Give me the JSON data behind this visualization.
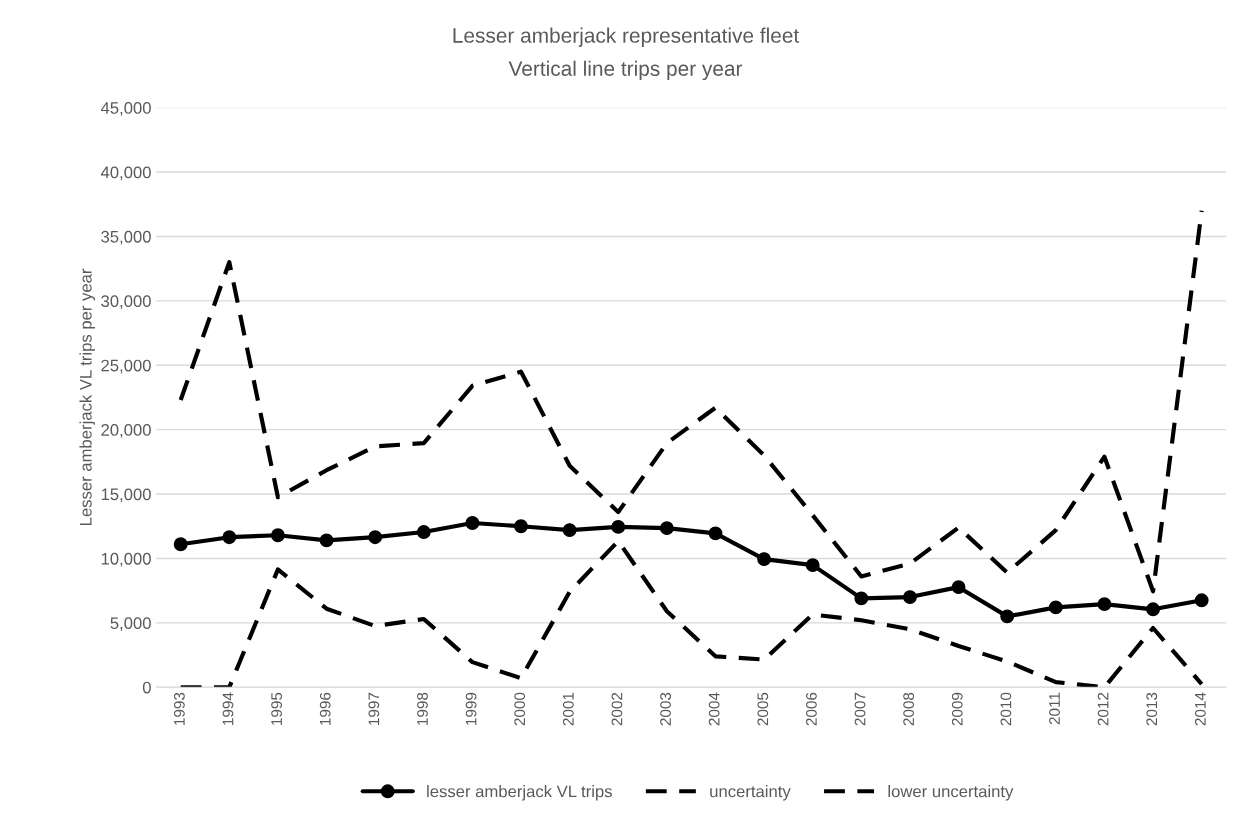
{
  "chart_data": {
    "type": "line",
    "title": "Lesser amberjack representative fleet",
    "subtitle": "Vertical line trips per year",
    "ylabel": "Lesser amberjack VL trips per year",
    "categories": [
      "1993",
      "1994",
      "1995",
      "1996",
      "1997",
      "1998",
      "1999",
      "2000",
      "2001",
      "2002",
      "2003",
      "2004",
      "2005",
      "2006",
      "2007",
      "2008",
      "2009",
      "2010",
      "2011",
      "2012",
      "2013",
      "2014"
    ],
    "series": [
      {
        "name": "lesser amberjack VL trips",
        "color": "#000000",
        "marker": "circle",
        "line_style": "solid",
        "values": [
          11100,
          11650,
          11800,
          11400,
          11650,
          12050,
          12750,
          12500,
          12200,
          12450,
          12350,
          11950,
          9950,
          9480,
          6900,
          7000,
          7770,
          5500,
          6200,
          6450,
          6050,
          6750
        ]
      },
      {
        "name": "uncertainty",
        "color": "#000000",
        "marker": "none",
        "line_style": "dashed",
        "values": [
          22300,
          33000,
          14750,
          16850,
          18700,
          18950,
          23400,
          24500,
          17200,
          13600,
          18950,
          21700,
          18000,
          13350,
          8600,
          9600,
          12400,
          8900,
          12200,
          17900,
          7450,
          37000
        ]
      },
      {
        "name": "lower uncertainty",
        "color": "#000000",
        "marker": "none",
        "line_style": "dashed",
        "values": [
          0,
          0,
          9150,
          6100,
          4750,
          5300,
          1950,
          700,
          7400,
          11350,
          5900,
          2400,
          2150,
          5650,
          5200,
          4500,
          3200,
          2000,
          400,
          0,
          4600,
          250
        ]
      }
    ],
    "ylim": [
      0,
      45000
    ],
    "yticks": [
      {
        "value": 0,
        "label": "0"
      },
      {
        "value": 5000,
        "label": "5,000"
      },
      {
        "value": 10000,
        "label": "10,000"
      },
      {
        "value": 15000,
        "label": "15,000"
      },
      {
        "value": 20000,
        "label": "20,000"
      },
      {
        "value": 25000,
        "label": "25,000"
      },
      {
        "value": 30000,
        "label": "30,000"
      },
      {
        "value": 35000,
        "label": "35,000"
      },
      {
        "value": 40000,
        "label": "40,000"
      },
      {
        "value": 45000,
        "label": "45,000"
      }
    ],
    "grid": "y",
    "legend": "bottom"
  }
}
